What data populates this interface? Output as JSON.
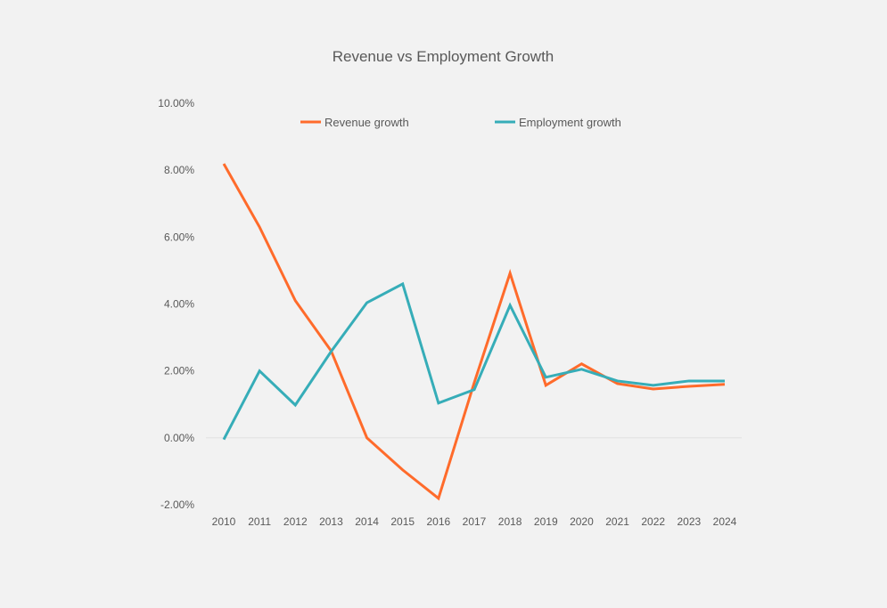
{
  "chart_data": {
    "type": "line",
    "title": "Revenue vs Employment Growth",
    "xlabel": "",
    "ylabel": "",
    "categories": [
      "2010",
      "2011",
      "2012",
      "2013",
      "2014",
      "2015",
      "2016",
      "2017",
      "2018",
      "2019",
      "2020",
      "2021",
      "2022",
      "2023",
      "2024"
    ],
    "ylim": [
      -2,
      10
    ],
    "yticks": [
      -2,
      0,
      2,
      4,
      6,
      8,
      10
    ],
    "ytick_labels": [
      "-2.00%",
      "0.00%",
      "2.00%",
      "4.00%",
      "6.00%",
      "8.00%",
      "10.00%"
    ],
    "grid": false,
    "legend_position": "top",
    "series": [
      {
        "name": "Revenue growth",
        "color": "#ff6b2b",
        "values": [
          8.19,
          6.3,
          4.1,
          2.6,
          0.0,
          -0.96,
          -1.81,
          1.65,
          4.92,
          1.57,
          2.21,
          1.62,
          1.46,
          1.54,
          1.6
        ]
      },
      {
        "name": "Employment growth",
        "color": "#36adb8",
        "values": [
          -0.05,
          2.0,
          0.98,
          2.58,
          4.04,
          4.6,
          1.04,
          1.44,
          3.96,
          1.81,
          2.05,
          1.7,
          1.57,
          1.7,
          1.7
        ]
      }
    ]
  }
}
